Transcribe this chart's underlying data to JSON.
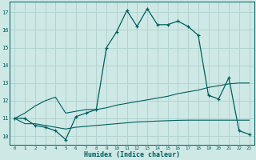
{
  "xlabel": "Humidex (Indice chaleur)",
  "bg_color": "#cde8e5",
  "grid_color": "#afd0cd",
  "line_color": "#005f5f",
  "x_values": [
    0,
    1,
    2,
    3,
    4,
    5,
    6,
    7,
    8,
    9,
    10,
    11,
    12,
    13,
    14,
    15,
    16,
    17,
    18,
    19,
    20,
    21,
    22,
    23
  ],
  "y_main": [
    11.0,
    11.0,
    10.6,
    10.5,
    10.3,
    9.8,
    11.1,
    11.3,
    11.5,
    15.0,
    15.9,
    17.1,
    16.2,
    17.2,
    16.3,
    16.3,
    16.5,
    16.2,
    15.7,
    12.3,
    12.1,
    13.3,
    10.3,
    10.1
  ],
  "y_upper": [
    11.0,
    11.3,
    11.7,
    12.0,
    12.2,
    11.3,
    11.4,
    11.5,
    11.5,
    11.6,
    11.75,
    11.85,
    11.95,
    12.05,
    12.15,
    12.25,
    12.4,
    12.5,
    12.6,
    12.75,
    12.85,
    12.95,
    13.0,
    13.0
  ],
  "y_lower": [
    11.0,
    10.7,
    10.7,
    10.6,
    10.5,
    10.4,
    10.5,
    10.55,
    10.6,
    10.65,
    10.7,
    10.75,
    10.8,
    10.82,
    10.85,
    10.87,
    10.89,
    10.9,
    10.9,
    10.9,
    10.9,
    10.9,
    10.9,
    10.9
  ],
  "ylim": [
    9.5,
    17.6
  ],
  "yticks": [
    10,
    11,
    12,
    13,
    14,
    15,
    16,
    17
  ],
  "xlim": [
    -0.5,
    23.5
  ],
  "xticks": [
    0,
    1,
    2,
    3,
    4,
    5,
    6,
    7,
    8,
    9,
    10,
    11,
    12,
    13,
    14,
    15,
    16,
    17,
    18,
    19,
    20,
    21,
    22,
    23
  ]
}
